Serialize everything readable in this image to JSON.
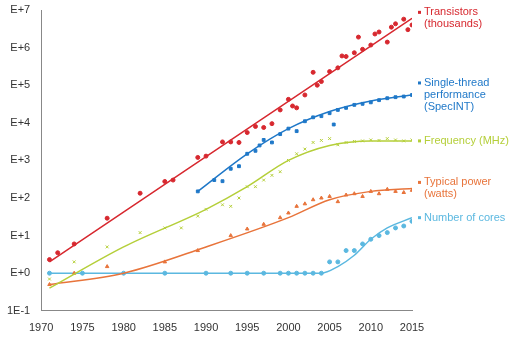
{
  "chart_data": {
    "type": "scatter",
    "log": "y",
    "grid": false,
    "xlim": [
      1970,
      2015
    ],
    "xticks": [
      1970,
      1975,
      1980,
      1985,
      1990,
      1995,
      2000,
      2005,
      2010,
      2015
    ],
    "ylim": [
      0.1,
      10000000
    ],
    "yticks": [
      {
        "value": 0.1,
        "label": "1E-1"
      },
      {
        "value": 1,
        "label": "E+0"
      },
      {
        "value": 10,
        "label": "E+1"
      },
      {
        "value": 100,
        "label": "E+2"
      },
      {
        "value": 1000,
        "label": "E+3"
      },
      {
        "value": 10000,
        "label": "E+4"
      },
      {
        "value": 100000,
        "label": "E+5"
      },
      {
        "value": 1000000,
        "label": "E+6"
      },
      {
        "value": 10000000,
        "label": "E+7"
      }
    ],
    "series": [
      {
        "name": "Transistors (thousands)",
        "color": "#d7282f",
        "marker": "circle",
        "x": [
          1971,
          1972,
          1974,
          1978,
          1982,
          1985,
          1986,
          1989,
          1990,
          1992,
          1993,
          1994,
          1995,
          1996,
          1997,
          1998,
          1999,
          2000,
          2000.5,
          2001,
          2002,
          2003,
          2003.5,
          2004,
          2005,
          2006,
          2006.5,
          2007,
          2008,
          2008.5,
          2009,
          2010,
          2010.5,
          2011,
          2012,
          2012.5,
          2013,
          2014,
          2014.5,
          2015
        ],
        "values": [
          2.3,
          3.5,
          6,
          29,
          134,
          275,
          300,
          1200,
          1300,
          3100,
          3100,
          3000,
          5500,
          8000,
          7500,
          9500,
          22000,
          42000,
          28000,
          25000,
          55000,
          220000,
          100000,
          125000,
          230000,
          290000,
          600000,
          580000,
          730000,
          1900000,
          900000,
          1170000,
          2300000,
          2600000,
          1400000,
          3500000,
          4300000,
          5700000,
          3000000,
          4000000
        ],
        "trend": {
          "x": [
            1971,
            2015
          ],
          "values": [
            2,
            6000000
          ]
        }
      },
      {
        "name": "Single-thread performance (SpecINT)",
        "color": "#1f78c8",
        "marker": "square",
        "x": [
          1989,
          1991,
          1992,
          1993,
          1994,
          1995,
          1996,
          1996.5,
          1997,
          1998,
          1999,
          2000,
          2001,
          2002,
          2003,
          2004,
          2005,
          2005.5,
          2006,
          2007,
          2008,
          2009,
          2010,
          2011,
          2012,
          2013,
          2014,
          2015
        ],
        "values": [
          150,
          300,
          280,
          600,
          700,
          1500,
          1800,
          2500,
          3500,
          3000,
          5000,
          7000,
          6000,
          11000,
          14000,
          15000,
          18000,
          9000,
          22000,
          25000,
          30000,
          32000,
          35000,
          40000,
          45000,
          48000,
          50000,
          55000
        ],
        "trend": {
          "x": [
            1989,
            1995,
            2000,
            2005,
            2010,
            2015
          ],
          "values": [
            150,
            1500,
            7000,
            20000,
            38000,
            55000
          ]
        }
      },
      {
        "name": "Frequency (MHz)",
        "color": "#b5cf3a",
        "marker": "x",
        "x": [
          1971,
          1974,
          1978,
          1982,
          1985,
          1987,
          1989,
          1990,
          1992,
          1993,
          1994,
          1995,
          1996,
          1997,
          1998,
          1999,
          2000,
          2001,
          2002,
          2003,
          2004,
          2005,
          2006,
          2007,
          2008,
          2009,
          2010,
          2011,
          2012,
          2013,
          2014,
          2015
        ],
        "values": [
          0.7,
          2,
          5,
          12,
          16,
          16,
          33,
          50,
          66,
          60,
          100,
          200,
          200,
          300,
          400,
          500,
          1000,
          1500,
          2000,
          3000,
          3400,
          3800,
          2600,
          3000,
          3200,
          3300,
          3500,
          3400,
          3800,
          3500,
          3300,
          3500
        ],
        "trend": {
          "x": [
            1971,
            1980,
            1990,
            1995,
            2000,
            2005,
            2010,
            2015
          ],
          "values": [
            0.4,
            5,
            50,
            200,
            1000,
            2500,
            3300,
            3300
          ]
        }
      },
      {
        "name": "Typical power (watts)",
        "color": "#e8743b",
        "marker": "triangle",
        "x": [
          1971,
          1974,
          1978,
          1985,
          1989,
          1993,
          1995,
          1997,
          1999,
          2000,
          2001,
          2002,
          2003,
          2004,
          2005,
          2006,
          2007,
          2008,
          2009,
          2010,
          2011,
          2012,
          2013,
          2014,
          2015
        ],
        "values": [
          0.5,
          1,
          1.5,
          2,
          4,
          10,
          15,
          20,
          30,
          40,
          60,
          70,
          90,
          100,
          110,
          80,
          120,
          130,
          110,
          150,
          130,
          170,
          150,
          140,
          160
        ],
        "trend": {
          "x": [
            1971,
            1980,
            1990,
            2000,
            2005,
            2010,
            2015
          ],
          "values": [
            0.5,
            1,
            5,
            30,
            90,
            150,
            180
          ]
        }
      },
      {
        "name": "Number of cores",
        "color": "#5bb8e0",
        "marker": "circle",
        "x": [
          1971,
          1975,
          1980,
          1985,
          1990,
          1993,
          1995,
          1997,
          1999,
          2000,
          2001,
          2002,
          2003,
          2004,
          2005,
          2006,
          2007,
          2008,
          2009,
          2010,
          2011,
          2012,
          2013,
          2014,
          2015
        ],
        "values": [
          1,
          1,
          1,
          1,
          1,
          1,
          1,
          1,
          1,
          1,
          1,
          1,
          1,
          1,
          2,
          2,
          4,
          4,
          6,
          8,
          10,
          12,
          16,
          18,
          24
        ],
        "trend": {
          "x": [
            1971,
            2004,
            2006,
            2008,
            2010,
            2012,
            2015
          ],
          "values": [
            1,
            1,
            1.5,
            3,
            8,
            16,
            30
          ]
        }
      }
    ]
  }
}
